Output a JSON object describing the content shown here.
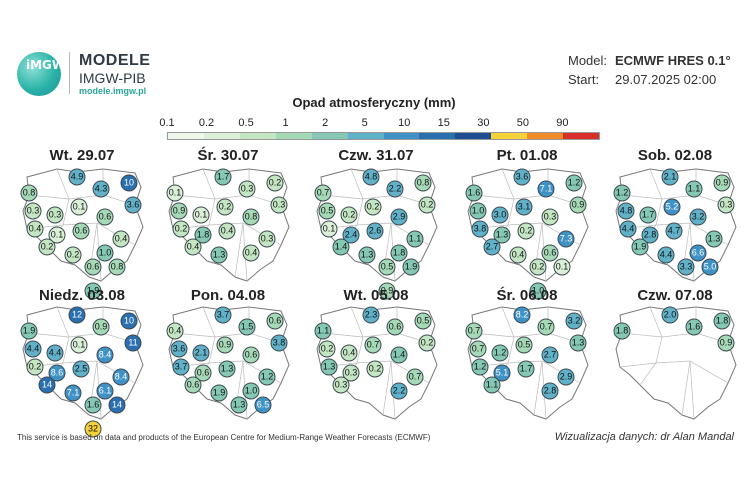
{
  "brand": {
    "logo_text": "iMGW",
    "name": "MODELE",
    "sub": "IMGW-PIB",
    "url": "modele.imgw.pl"
  },
  "meta": {
    "model_label": "Model:",
    "model_value": "ECMWF HRES 0.1°",
    "start_label": "Start:",
    "start_value": "29.07.2025 02:00"
  },
  "legend": {
    "title": "Opad atmosferyczny (mm)",
    "ticks": [
      "0.1",
      "0.2",
      "0.5",
      "1",
      "2",
      "5",
      "10",
      "15",
      "30",
      "50",
      "90"
    ],
    "colors": [
      "#eef7ea",
      "#dbf0d6",
      "#c4e6c2",
      "#a6d9b6",
      "#85c9b4",
      "#61b2c9",
      "#3f92c5",
      "#2a6fb0",
      "#1e4e8f",
      "#f4d33a",
      "#f08c2a",
      "#d9302a"
    ]
  },
  "panels": [
    {
      "title": "Wt. 29.07",
      "values": [
        "4.9",
        "10",
        "4.3",
        "0.8",
        "3.6",
        "0.3",
        "0.3",
        "0.1",
        "0.6",
        "0.4",
        "0.1",
        "0.6",
        "0.4",
        "0.2",
        "1.0",
        "0.2",
        "0.6",
        "0.8",
        "1.9"
      ]
    },
    {
      "title": "Śr. 30.07",
      "values": [
        "1.7",
        "0.2",
        "0.3",
        "0.1",
        "0.3",
        "0.9",
        "0.1",
        "0.2",
        "0.8",
        "0.2",
        "1.8",
        "0.4",
        "0.3",
        "0.4",
        "0.4",
        "1.3"
      ]
    },
    {
      "title": "Czw. 31.07",
      "values": [
        "4.8",
        "0.8",
        "2.2",
        "0.7",
        "0.2",
        "0.5",
        "0.2",
        "0.2",
        "2.9",
        "0.1",
        "2.4",
        "2.6",
        "1.1",
        "1.4",
        "1.8",
        "1.3",
        "0.5",
        "1.9",
        "0.9"
      ]
    },
    {
      "title": "Pt. 01.08",
      "values": [
        "3.6",
        "1.2",
        "7.1",
        "1.6",
        "0.9",
        "1.0",
        "3.0",
        "3.1",
        "0.3",
        "3.8",
        "1.3",
        "0.2",
        "7.3",
        "2.7",
        "0.6",
        "0.4",
        "0.2",
        "0.1",
        "1.0"
      ]
    },
    {
      "title": "Sob. 02.08",
      "values": [
        "2.1",
        "0.9",
        "1.1",
        "1.2",
        "0.3",
        "4.8",
        "1.7",
        "5.2",
        "3.2",
        "4.4",
        "2.8",
        "4.7",
        "1.3",
        "1.9",
        "6.6",
        "4.4",
        "3.3",
        "5.0"
      ]
    },
    {
      "title": "Niedz. 03.08",
      "values": [
        "12",
        "10",
        "0.9",
        "1.9",
        "11",
        "4.4",
        "4.4",
        "0.1",
        "8.4",
        "0.2",
        "8.6",
        "2.5",
        "8.4",
        "14",
        "6.1",
        "7.1",
        "1.6",
        "14",
        "32"
      ]
    },
    {
      "title": "Pon. 04.08",
      "values": [
        "3.7",
        "0.6",
        "1.5",
        "0.4",
        "3.8",
        "3.6",
        "2.1",
        "0.9",
        "0.6",
        "3.7",
        "0.6",
        "1.3",
        "1.2",
        "0.6",
        "1.0",
        "1.9",
        "1.3",
        "6.5"
      ]
    },
    {
      "title": "Wt. 05.08",
      "values": [
        "2.3",
        "0.5",
        "0.6",
        "1.1",
        "0.2",
        "0.2",
        "0.4",
        "0.7",
        "1.4",
        "1.3",
        "0.3",
        "0.2",
        "0.7",
        "0.3",
        "2.2"
      ]
    },
    {
      "title": "Śr. 06.08",
      "values": [
        "8.2",
        "3.2",
        "0.7",
        "0.7",
        "1.3",
        "0.7",
        "1.2",
        "0.5",
        "2.7",
        "1.2",
        "5.1",
        "1.7",
        "2.9",
        "1.1",
        "2.8"
      ]
    },
    {
      "title": "Czw. 07.08",
      "values": [
        "2.0",
        "1.8",
        "1.6",
        "1.8",
        "0.9"
      ]
    }
  ],
  "footer": {
    "left": "This service is based on data and products of the European Centre for Medium-Range Weather Forecasts (ECMWF)",
    "right": "Wizualizacja danych: dr Alan Mandal"
  }
}
